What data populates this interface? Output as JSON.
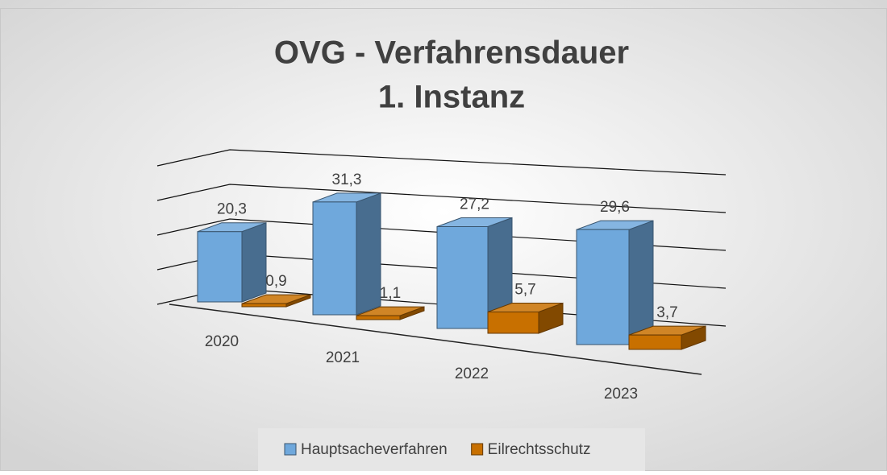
{
  "chart_data": {
    "type": "bar3d",
    "title": "OVG - Verfahrensdauer",
    "subtitle": "1. Instanz",
    "categories": [
      "2020",
      "2021",
      "2022",
      "2023"
    ],
    "series": [
      {
        "name": "Hauptsacheverfahren",
        "color": "#6fa8dc",
        "values": [
          20.3,
          31.3,
          27.2,
          29.6
        ],
        "value_labels": [
          "20,3",
          "31,3",
          "27,2",
          "29,6"
        ]
      },
      {
        "name": "Eilrechtsschutz",
        "color": "#c87000",
        "values": [
          0.9,
          1.1,
          5.7,
          3.7
        ],
        "value_labels": [
          "0,9",
          "1,1",
          "5,7",
          "3,7"
        ]
      }
    ],
    "ylim": [
      0,
      40
    ],
    "yticks": [
      0,
      10,
      20,
      30,
      40
    ],
    "grid": true,
    "legend": "bottom"
  }
}
